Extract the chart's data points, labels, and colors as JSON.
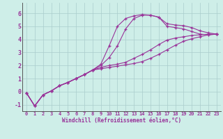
{
  "background_color": "#ceeee8",
  "grid_color": "#aacccc",
  "line_color": "#993399",
  "xlim": [
    -0.5,
    23.5
  ],
  "ylim": [
    -1.5,
    6.8
  ],
  "xlabel": "Windchill (Refroidissement éolien,°C)",
  "xticks": [
    0,
    1,
    2,
    3,
    4,
    5,
    6,
    7,
    8,
    9,
    10,
    11,
    12,
    13,
    14,
    15,
    16,
    17,
    18,
    19,
    20,
    21,
    22,
    23
  ],
  "yticks": [
    -1,
    0,
    1,
    2,
    3,
    4,
    5,
    6
  ],
  "lines": [
    {
      "x": [
        0,
        1,
        2,
        3,
        4,
        5,
        6,
        7,
        8,
        9,
        10,
        11,
        12,
        13,
        14,
        15,
        16,
        17,
        18,
        19,
        20,
        21,
        22,
        23
      ],
      "y": [
        -0.1,
        -1.1,
        -0.25,
        0.05,
        0.45,
        0.7,
        1.0,
        1.3,
        1.65,
        2.1,
        3.5,
        5.0,
        5.6,
        5.8,
        5.9,
        5.85,
        5.7,
        5.2,
        5.1,
        5.05,
        4.9,
        4.65,
        4.5,
        4.4
      ]
    },
    {
      "x": [
        0,
        1,
        2,
        3,
        4,
        5,
        6,
        7,
        8,
        9,
        10,
        11,
        12,
        13,
        14,
        15,
        16,
        17,
        18,
        19,
        20,
        21,
        22,
        23
      ],
      "y": [
        -0.1,
        -1.1,
        -0.25,
        0.05,
        0.45,
        0.7,
        1.0,
        1.3,
        1.65,
        2.0,
        2.6,
        3.5,
        4.8,
        5.6,
        5.85,
        5.85,
        5.7,
        5.0,
        4.9,
        4.8,
        4.6,
        4.4,
        4.35,
        4.4
      ]
    },
    {
      "x": [
        0,
        1,
        2,
        3,
        4,
        5,
        6,
        7,
        8,
        9,
        10,
        11,
        12,
        13,
        14,
        15,
        16,
        17,
        18,
        19,
        20,
        21,
        22,
        23
      ],
      "y": [
        -0.1,
        -1.1,
        -0.25,
        0.05,
        0.45,
        0.7,
        1.0,
        1.3,
        1.65,
        1.85,
        2.0,
        2.1,
        2.25,
        2.55,
        2.85,
        3.2,
        3.6,
        3.95,
        4.1,
        4.2,
        4.3,
        4.35,
        4.4,
        4.4
      ]
    },
    {
      "x": [
        0,
        1,
        2,
        3,
        4,
        5,
        6,
        7,
        8,
        9,
        10,
        11,
        12,
        13,
        14,
        15,
        16,
        17,
        18,
        19,
        20,
        21,
        22,
        23
      ],
      "y": [
        -0.1,
        -1.1,
        -0.25,
        0.05,
        0.45,
        0.7,
        1.0,
        1.3,
        1.65,
        1.75,
        1.85,
        1.95,
        2.05,
        2.15,
        2.3,
        2.55,
        2.85,
        3.2,
        3.55,
        3.85,
        4.05,
        4.2,
        4.35,
        4.4
      ]
    }
  ]
}
